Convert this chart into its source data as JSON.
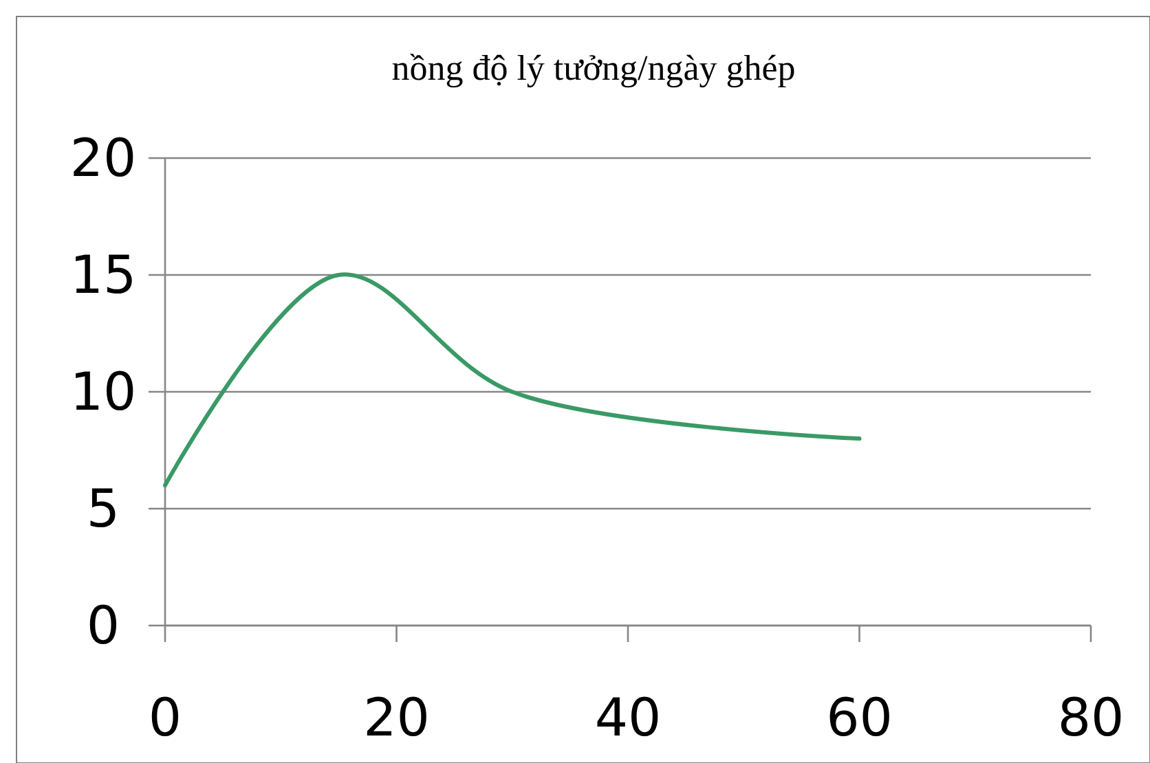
{
  "chart_data": {
    "type": "line",
    "title": "nồng độ lý tưởng/ngày ghép",
    "x": [
      0,
      15,
      30,
      60
    ],
    "series": [
      {
        "color": "#3a9a66",
        "values": [
          6,
          15,
          10,
          8
        ]
      }
    ],
    "xlim": [
      0,
      80
    ],
    "xticks": [
      0,
      20,
      40,
      60,
      80
    ],
    "ylim": [
      0,
      20
    ],
    "yticks": [
      0,
      5,
      10,
      15,
      20
    ],
    "grid": "y",
    "marker": "none",
    "line_style": "solid"
  }
}
